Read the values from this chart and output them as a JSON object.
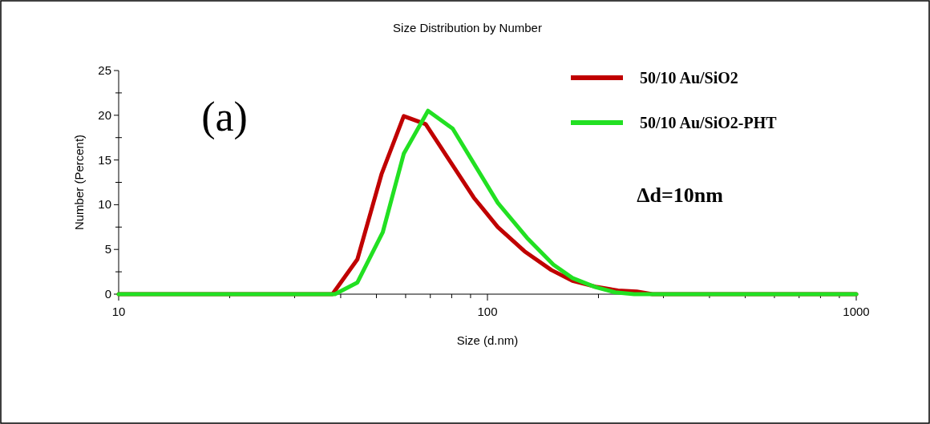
{
  "chart_data": {
    "type": "line",
    "title": "Size Distribution by Number",
    "xlabel": "Size (d.nm)",
    "ylabel": "Number (Percent)",
    "log": "x",
    "legend": "top right",
    "marker": "none",
    "line_style": "solid",
    "grid": false,
    "xlim": [
      10,
      1000
    ],
    "ylim": [
      0,
      25
    ],
    "xticks": [
      10,
      {
        "value": 20,
        "label": null
      },
      {
        "value": 30,
        "label": null
      },
      {
        "value": 40,
        "label": null
      },
      {
        "value": 50,
        "label": null
      },
      {
        "value": 60,
        "label": null
      },
      {
        "value": 70,
        "label": null
      },
      {
        "value": 80,
        "label": null
      },
      {
        "value": 90,
        "label": null
      },
      100,
      {
        "value": 200,
        "label": null
      },
      {
        "value": 300,
        "label": null
      },
      {
        "value": 400,
        "label": null
      },
      {
        "value": 500,
        "label": null
      },
      {
        "value": 600,
        "label": null
      },
      {
        "value": 700,
        "label": null
      },
      {
        "value": 800,
        "label": null
      },
      {
        "value": 900,
        "label": null
      },
      1000
    ],
    "yticks": [
      0,
      {
        "value": 2.5,
        "label": null
      },
      5,
      {
        "value": 7.5,
        "label": null
      },
      10,
      {
        "value": 12.5,
        "label": null
      },
      15,
      {
        "value": 17.5,
        "label": null
      },
      20,
      {
        "value": 22.5,
        "label": null
      },
      25
    ],
    "annotations": [
      "(a)",
      "Δd=10nm"
    ],
    "series": [
      {
        "name": "50/10 Au/SiO2",
        "color": "#c00000",
        "x": [
          10,
          38,
          44.4,
          51.6,
          59.3,
          68,
          91.8,
          106.7,
          126,
          149,
          170,
          198,
          226,
          254,
          280,
          1000
        ],
        "values": [
          0,
          0,
          3.9,
          13.4,
          19.9,
          19,
          10.8,
          7.5,
          4.8,
          2.7,
          1.5,
          0.8,
          0.4,
          0.3,
          0,
          0
        ]
      },
      {
        "name": "50/10 Au/SiO2-PHT",
        "color": "#22e022",
        "x": [
          10,
          38.6,
          44.4,
          52,
          59.3,
          69,
          80.5,
          106.7,
          128,
          151,
          170,
          196,
          222,
          250,
          1000
        ],
        "values": [
          0,
          0,
          1.3,
          6.9,
          15.7,
          20.5,
          18.5,
          10.2,
          6.3,
          3.3,
          1.8,
          0.8,
          0.2,
          0,
          0
        ]
      }
    ]
  }
}
